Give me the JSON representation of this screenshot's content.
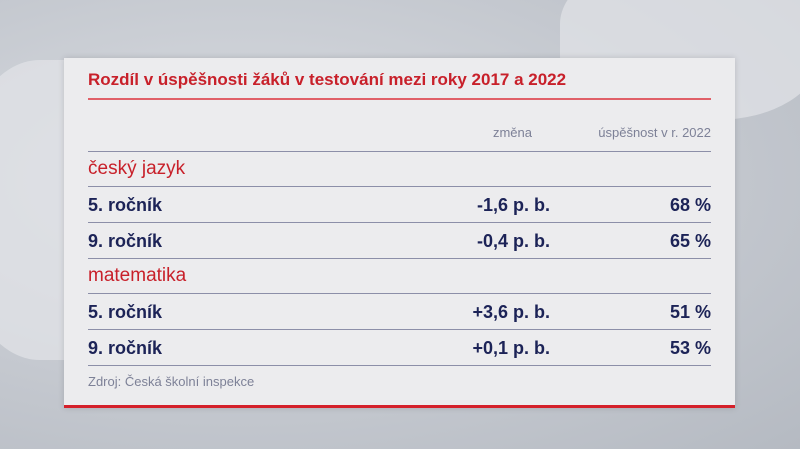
{
  "chart_data": {
    "type": "table",
    "title": "Rozdíl v úspěšnosti žáků v testování mezi roky 2017 a 2022",
    "columns": [
      "změna",
      "úspěšnost v r. 2022"
    ],
    "sections": [
      {
        "name": "český jazyk",
        "rows": [
          {
            "label": "5. ročník",
            "change": "-1,6 p. b.",
            "success": "68 %"
          },
          {
            "label": "9. ročník",
            "change": "-0,4 p. b.",
            "success": "65 %"
          }
        ]
      },
      {
        "name": "matematika",
        "rows": [
          {
            "label": "5. ročník",
            "change": "+3,6 p. b.",
            "success": "51 %"
          },
          {
            "label": "9. ročník",
            "change": "+0,1 p. b.",
            "success": "53 %"
          }
        ]
      }
    ],
    "source": "Zdroj: Česká školní inspekce",
    "colors": {
      "accent": "#c8202a",
      "text": "#1c2357",
      "muted": "#7d8197"
    }
  }
}
